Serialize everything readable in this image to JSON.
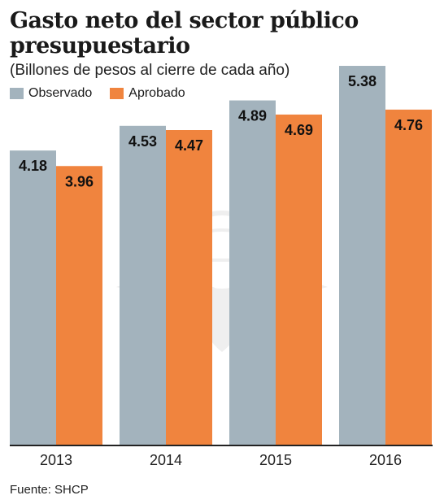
{
  "title": "Gasto neto del sector público presupuestario",
  "subtitle": "(Billones de pesos al cierre de cada año)",
  "source": "Fuente: SHCP",
  "colors": {
    "observado": "#a3b3bd",
    "aprobado": "#f0843e",
    "axis": "#222222"
  },
  "chart_data": {
    "type": "bar",
    "categories": [
      "2013",
      "2014",
      "2015",
      "2016"
    ],
    "series": [
      {
        "name": "Observado",
        "values": [
          4.18,
          4.53,
          4.89,
          5.38
        ],
        "labels": [
          "4.18",
          "4.53",
          "4.89",
          "5.38"
        ]
      },
      {
        "name": "Aprobado",
        "values": [
          3.96,
          4.47,
          4.69,
          4.76
        ],
        "labels": [
          "3.96",
          "4.47",
          "4.69",
          "4.76"
        ]
      }
    ],
    "legend_position": "top-left",
    "grid": false
  }
}
